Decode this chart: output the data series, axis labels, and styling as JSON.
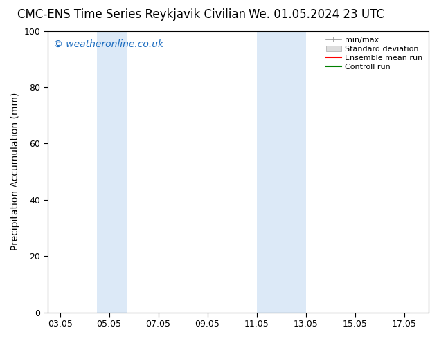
{
  "title": "CMC-ENS Time Series Reykjavik Civilian      We. 01.05.2024 23 UTC",
  "title_left": "CMC-ENS Time Series Reykjavik Civilian",
  "title_right": "We. 01.05.2024 23 UTC",
  "ylabel": "Precipitation Accumulation (mm)",
  "ylim": [
    0,
    100
  ],
  "yticks": [
    0,
    20,
    40,
    60,
    80,
    100
  ],
  "xlim_start": 2.5,
  "xlim_end": 18.0,
  "xtick_labels": [
    "03.05",
    "05.05",
    "07.05",
    "09.05",
    "11.05",
    "13.05",
    "15.05",
    "17.05"
  ],
  "xtick_positions": [
    3.0,
    5.0,
    7.0,
    9.0,
    11.0,
    13.0,
    15.0,
    17.0
  ],
  "shaded_regions": [
    {
      "x_start": 4.5,
      "x_end": 5.75,
      "color": "#dce9f7"
    },
    {
      "x_start": 11.0,
      "x_end": 13.0,
      "color": "#dce9f7"
    }
  ],
  "watermark_text": "© weatheronline.co.uk",
  "watermark_color": "#1a6bbf",
  "watermark_fontsize": 10,
  "background_color": "#ffffff",
  "legend_items": [
    {
      "label": "min/max",
      "color": "#999999",
      "type": "errorbar"
    },
    {
      "label": "Standard deviation",
      "color": "#cccccc",
      "type": "bar"
    },
    {
      "label": "Ensemble mean run",
      "color": "#ff0000",
      "type": "line"
    },
    {
      "label": "Controll run",
      "color": "#008000",
      "type": "line"
    }
  ],
  "title_fontsize": 12,
  "axis_fontsize": 10,
  "tick_fontsize": 9,
  "legend_fontsize": 8
}
